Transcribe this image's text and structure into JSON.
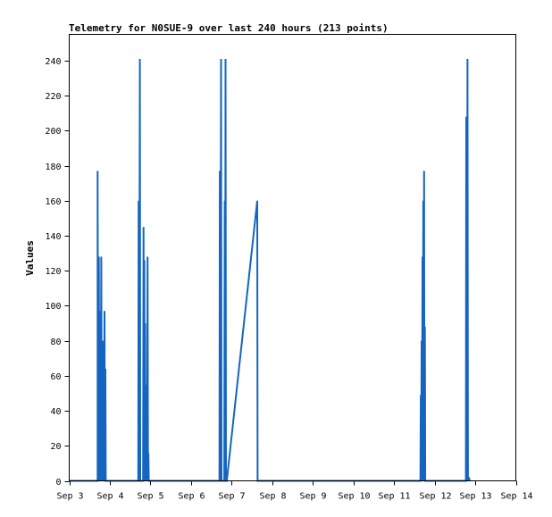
{
  "chart_data": {
    "type": "line",
    "title": "Telemetry for N0SUE-9 over last 240 hours (213 points)",
    "ylabel": "Values",
    "xlabel": "",
    "ylim": [
      0,
      255
    ],
    "xlim": [
      0,
      11
    ],
    "yticks": [
      0,
      20,
      40,
      60,
      80,
      100,
      120,
      140,
      160,
      180,
      200,
      220,
      240
    ],
    "xticks": [
      {
        "x": 0,
        "label": "Sep 3"
      },
      {
        "x": 1,
        "label": "Sep 4"
      },
      {
        "x": 2,
        "label": "Sep 5"
      },
      {
        "x": 3,
        "label": "Sep 6"
      },
      {
        "x": 4,
        "label": "Sep 7"
      },
      {
        "x": 5,
        "label": "Sep 8"
      },
      {
        "x": 6,
        "label": "Sep 9"
      },
      {
        "x": 7,
        "label": "Sep 10"
      },
      {
        "x": 8,
        "label": "Sep 11"
      },
      {
        "x": 9,
        "label": "Sep 12"
      },
      {
        "x": 10,
        "label": "Sep 13"
      },
      {
        "x": 11,
        "label": "Sep 14"
      }
    ],
    "grid": false,
    "colors": {
      "series": "#1565c0",
      "axis": "#000000"
    },
    "series": [
      {
        "values": [
          [
            0.7,
            0
          ],
          [
            0.7,
            177
          ],
          [
            0.71,
            0
          ],
          [
            0.73,
            128
          ],
          [
            0.74,
            0
          ],
          [
            0.76,
            97
          ],
          [
            0.77,
            0
          ],
          [
            0.79,
            128
          ],
          [
            0.8,
            0
          ],
          [
            0.82,
            80
          ],
          [
            0.83,
            0
          ],
          [
            0.84,
            49
          ],
          [
            0.85,
            0
          ],
          [
            0.87,
            97
          ],
          [
            0.88,
            0
          ],
          [
            0.89,
            64
          ],
          [
            0.9,
            0
          ],
          [
            1.7,
            0
          ],
          [
            1.71,
            160
          ],
          [
            1.72,
            0
          ],
          [
            1.74,
            241
          ],
          [
            1.75,
            0
          ],
          [
            1.82,
            0
          ],
          [
            1.83,
            145
          ],
          [
            1.84,
            0
          ],
          [
            1.85,
            126
          ],
          [
            1.86,
            0
          ],
          [
            1.87,
            90
          ],
          [
            1.88,
            0
          ],
          [
            1.89,
            55
          ],
          [
            1.9,
            0
          ],
          [
            1.91,
            18
          ],
          [
            1.92,
            0
          ],
          [
            1.93,
            128
          ],
          [
            1.94,
            0
          ],
          [
            1.95,
            16
          ],
          [
            1.96,
            0
          ],
          [
            3.7,
            0
          ],
          [
            3.71,
            177
          ],
          [
            3.72,
            0
          ],
          [
            3.74,
            241
          ],
          [
            3.75,
            0
          ],
          [
            3.82,
            0
          ],
          [
            3.83,
            160
          ],
          [
            3.84,
            0
          ],
          [
            3.85,
            241
          ],
          [
            3.86,
            0
          ],
          [
            3.88,
            0
          ],
          [
            4.63,
            160
          ],
          [
            4.64,
            0
          ],
          [
            8.65,
            0
          ],
          [
            8.66,
            49
          ],
          [
            8.67,
            0
          ],
          [
            8.68,
            80
          ],
          [
            8.69,
            0
          ],
          [
            8.7,
            128
          ],
          [
            8.71,
            0
          ],
          [
            8.72,
            160
          ],
          [
            8.73,
            0
          ],
          [
            8.74,
            177
          ],
          [
            8.75,
            0
          ],
          [
            8.76,
            88
          ],
          [
            8.77,
            0
          ],
          [
            9.77,
            0
          ],
          [
            9.78,
            208
          ],
          [
            9.79,
            0
          ],
          [
            9.81,
            241
          ],
          [
            9.82,
            0
          ],
          [
            9.85,
            2
          ],
          [
            9.86,
            0
          ]
        ]
      }
    ]
  }
}
